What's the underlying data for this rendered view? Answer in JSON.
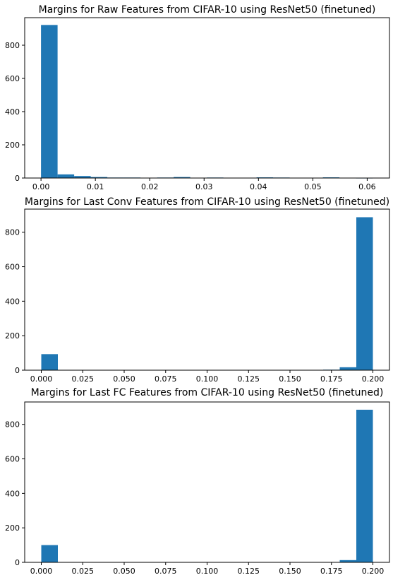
{
  "chart_data": [
    {
      "type": "bar",
      "title": "Margins for Raw Features from CIFAR-10 using ResNet50 (finetuned)",
      "xlabel": "",
      "ylabel": "",
      "xlim": [
        -0.003,
        0.0641
      ],
      "ylim": [
        0,
        966
      ],
      "x_ticks": [
        0.0,
        0.01,
        0.02,
        0.03,
        0.04,
        0.05,
        0.06
      ],
      "x_tick_labels": [
        "0.00",
        "0.01",
        "0.02",
        "0.03",
        "0.04",
        "0.05",
        "0.06"
      ],
      "y_ticks": [
        0,
        200,
        400,
        600,
        800
      ],
      "y_tick_labels": [
        "0",
        "200",
        "400",
        "600",
        "800"
      ],
      "grid": false,
      "bar_color": "#1f77b4",
      "bin_start": 0.0,
      "bin_width": 0.00305,
      "bin_counts": [
        922,
        22,
        12,
        6,
        3,
        3,
        2,
        3,
        6,
        2,
        3,
        2,
        2,
        4,
        3,
        2,
        2,
        4,
        0,
        1
      ]
    },
    {
      "type": "bar",
      "title": "Margins for Last Conv Features from CIFAR-10 using ResNet50 (finetuned)",
      "xlabel": "",
      "ylabel": "",
      "xlim": [
        -0.01,
        0.21
      ],
      "ylim": [
        0,
        934
      ],
      "x_ticks": [
        0.0,
        0.025,
        0.05,
        0.075,
        0.1,
        0.125,
        0.15,
        0.175,
        0.2
      ],
      "x_tick_labels": [
        "0.000",
        "0.025",
        "0.050",
        "0.075",
        "0.100",
        "0.125",
        "0.150",
        "0.175",
        "0.200"
      ],
      "y_ticks": [
        0,
        200,
        400,
        600,
        800
      ],
      "y_tick_labels": [
        "0",
        "200",
        "400",
        "600",
        "800"
      ],
      "grid": false,
      "bar_color": "#1f77b4",
      "bin_start": 0.0,
      "bin_width": 0.01,
      "bin_counts": [
        93,
        0,
        0,
        0,
        0,
        0,
        0,
        0,
        0,
        0,
        0,
        0,
        0,
        0,
        0,
        0,
        0,
        3,
        17,
        887
      ]
    },
    {
      "type": "bar",
      "title": "Margins for Last FC Features from CIFAR-10 using ResNet50 (finetuned)",
      "xlabel": "",
      "ylabel": "",
      "xlim": [
        -0.01,
        0.21
      ],
      "ylim": [
        0,
        930
      ],
      "x_ticks": [
        0.0,
        0.025,
        0.05,
        0.075,
        0.1,
        0.125,
        0.15,
        0.175,
        0.2
      ],
      "x_tick_labels": [
        "0.000",
        "0.025",
        "0.050",
        "0.075",
        "0.100",
        "0.125",
        "0.150",
        "0.175",
        "0.200"
      ],
      "y_ticks": [
        0,
        200,
        400,
        600,
        800
      ],
      "y_tick_labels": [
        "0",
        "200",
        "400",
        "600",
        "800"
      ],
      "grid": false,
      "bar_color": "#1f77b4",
      "bin_start": 0.0,
      "bin_width": 0.01,
      "bin_counts": [
        100,
        0,
        0,
        0,
        0,
        0,
        0,
        0,
        0,
        0,
        0,
        0,
        0,
        0,
        0,
        0,
        0,
        0,
        13,
        885
      ]
    }
  ]
}
